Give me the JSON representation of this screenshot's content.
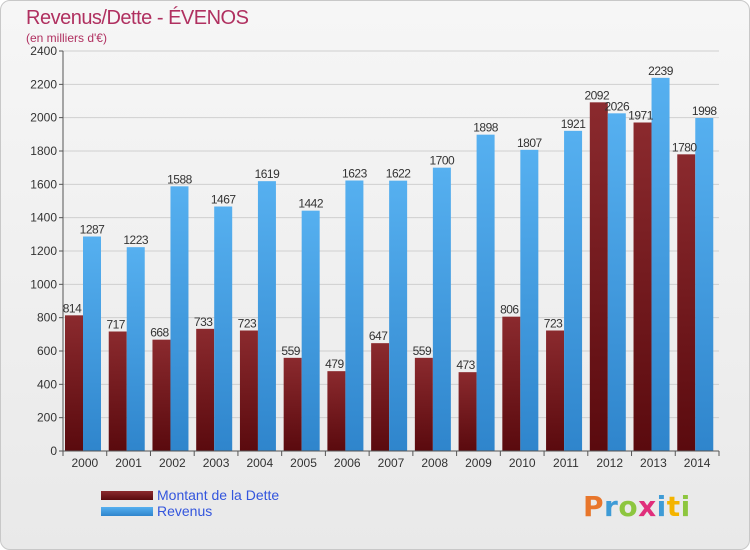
{
  "header": {
    "title": "Revenus/Dette - ÉVENOS",
    "subtitle": "(en milliers d'€)"
  },
  "legend": {
    "items": [
      {
        "label": "Montant de la Dette",
        "color": "#6b0f14"
      },
      {
        "label": "Revenus",
        "color": "#4aa3e8"
      }
    ]
  },
  "logo": {
    "text": "Proxiti",
    "letters": [
      {
        "char": "P",
        "color": "#e8762b"
      },
      {
        "char": "r",
        "color": "#3e9bd6"
      },
      {
        "char": "o",
        "color": "#8dc63f"
      },
      {
        "char": "x",
        "color": "#e02f7b"
      },
      {
        "char": "i",
        "color": "#3e9bd6"
      },
      {
        "char": "t",
        "color": "#f4b400"
      },
      {
        "char": "i",
        "color": "#8dc63f"
      }
    ]
  },
  "chart_data": {
    "type": "bar",
    "title": "Revenus/Dette - ÉVENOS",
    "subtitle": "(en milliers d'€)",
    "categories": [
      "2000",
      "2001",
      "2002",
      "2003",
      "2004",
      "2005",
      "2006",
      "2007",
      "2008",
      "2009",
      "2010",
      "2011",
      "2012",
      "2013",
      "2014"
    ],
    "series": [
      {
        "name": "Montant de la Dette",
        "color": "#6b0f14",
        "values": [
          814,
          717,
          668,
          733,
          723,
          559,
          479,
          647,
          559,
          473,
          806,
          723,
          2092,
          1971,
          1780
        ],
        "labels": [
          "814",
          "717",
          "668",
          "733",
          "723",
          "559",
          "479",
          "647",
          "559",
          "473",
          "806",
          "723",
          "2092",
          "1971",
          "1780"
        ]
      },
      {
        "name": "Revenus",
        "color": "#4aa3e8",
        "values": [
          1287,
          1223,
          1588,
          1467,
          1619,
          1442,
          1623,
          1622,
          1700,
          1898,
          1807,
          1921,
          2026,
          2239,
          1998
        ],
        "labels": [
          "1287",
          "1223",
          "1588",
          "1467",
          "1619",
          "1442",
          "1623",
          "1622",
          "1700",
          "1898",
          "1807",
          "1921",
          "2026",
          "2239",
          "1998"
        ]
      }
    ],
    "ylim": [
      0,
      2400
    ],
    "yticks": [
      0,
      200,
      400,
      600,
      800,
      1000,
      1200,
      1400,
      1600,
      1800,
      2000,
      2200,
      2400
    ],
    "grid": true,
    "legend_position": "bottom-left"
  }
}
